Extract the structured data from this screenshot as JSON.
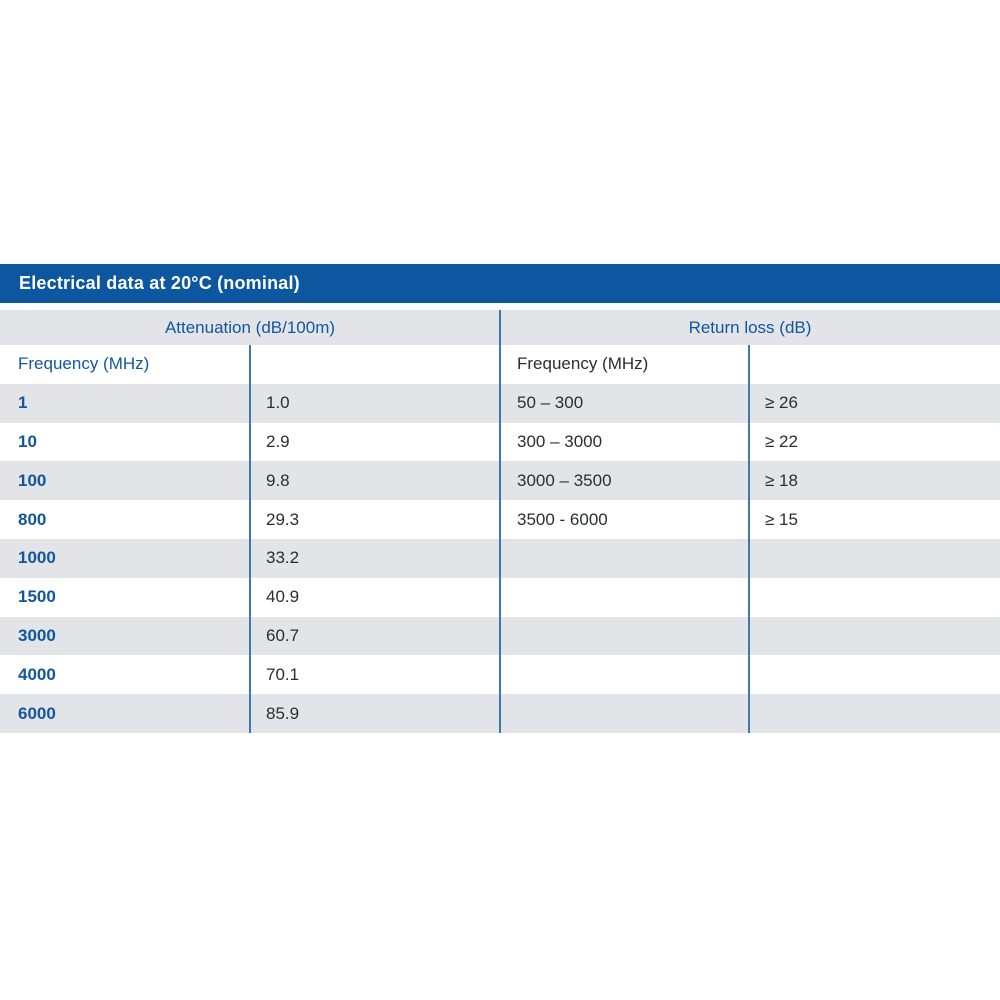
{
  "title_bar": {
    "label": "Electrical data at 20°C (nominal)",
    "background": "#0d56a0",
    "text_color": "#ffffff"
  },
  "colors": {
    "accent_blue": "#0d56a0",
    "text_blue": "#11569f",
    "text_dark": "#2b2d30",
    "row_gray": "#e2e4e7",
    "row_white": "#ffffff",
    "divider_blue": "#3b79b3"
  },
  "attenuation_table": {
    "header": "Attenuation (dB/100m)",
    "column_label": "Frequency (MHz)",
    "rows": [
      {
        "frequency": "1",
        "value": "1.0"
      },
      {
        "frequency": "10",
        "value": "2.9"
      },
      {
        "frequency": "100",
        "value": "9.8"
      },
      {
        "frequency": "800",
        "value": "29.3"
      },
      {
        "frequency": "1000",
        "value": "33.2"
      },
      {
        "frequency": "1500",
        "value": "40.9"
      },
      {
        "frequency": "3000",
        "value": "60.7"
      },
      {
        "frequency": "4000",
        "value": "70.1"
      },
      {
        "frequency": "6000",
        "value": "85.9"
      }
    ]
  },
  "return_loss_table": {
    "header": "Return loss (dB)",
    "column_label": "Frequency (MHz)",
    "rows": [
      {
        "frequency": "50 – 300",
        "value": "≥ 26"
      },
      {
        "frequency": "300 – 3000",
        "value": "≥ 22"
      },
      {
        "frequency": "3000 – 3500",
        "value": "≥ 18"
      },
      {
        "frequency": "3500 - 6000",
        "value": "≥ 15"
      }
    ],
    "empty_rows": 5
  },
  "layout": {
    "total_striped_rows": 9,
    "first_stripe": "gray"
  }
}
